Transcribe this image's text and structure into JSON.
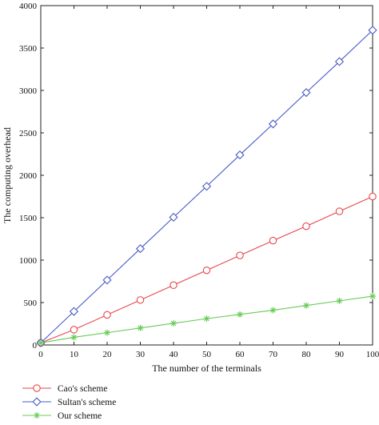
{
  "chart_data": {
    "type": "line",
    "title": "",
    "xlabel": "The number of the terminals",
    "ylabel": "The computing overhead",
    "xlim": [
      0,
      100
    ],
    "ylim": [
      0,
      4000
    ],
    "x_ticks": [
      0,
      10,
      20,
      30,
      40,
      50,
      60,
      70,
      80,
      90,
      100
    ],
    "y_ticks": [
      0,
      500,
      1000,
      1500,
      2000,
      2500,
      3000,
      3500,
      4000
    ],
    "grid": false,
    "legend_position": "bottom-left",
    "x": [
      0,
      10,
      20,
      30,
      40,
      50,
      60,
      70,
      80,
      90,
      100
    ],
    "series": [
      {
        "name": "Cao's scheme",
        "color": "#e8474b",
        "marker": "circle",
        "values": [
          25,
          180,
          355,
          530,
          705,
          880,
          1055,
          1230,
          1400,
          1575,
          1750
        ]
      },
      {
        "name": "Sultan's scheme",
        "color": "#4a5bc7",
        "marker": "diamond",
        "values": [
          25,
          395,
          765,
          1135,
          1505,
          1870,
          2240,
          2605,
          2975,
          3340,
          3710
        ]
      },
      {
        "name": "Our scheme",
        "color": "#66cc55",
        "marker": "star",
        "values": [
          25,
          90,
          145,
          200,
          255,
          310,
          360,
          410,
          465,
          520,
          575
        ]
      }
    ]
  }
}
